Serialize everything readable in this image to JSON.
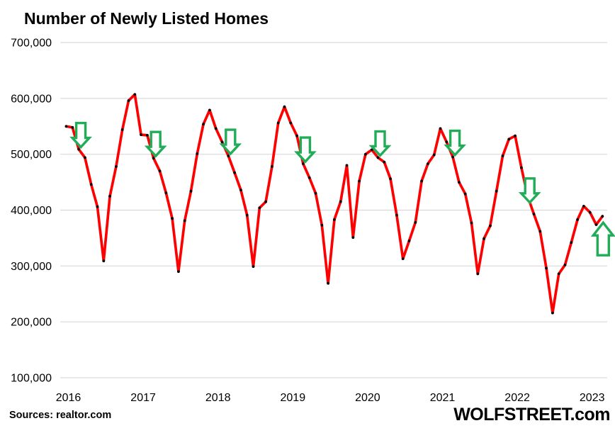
{
  "chart_data": {
    "type": "line",
    "title": "Number of Newly Listed Homes",
    "source_note": "Sources: realtor.com",
    "branding": "WOLFSTREET.com",
    "series_name": "Newly listed homes per month",
    "x": [
      "2016-07",
      "2016-08",
      "2016-09",
      "2016-10",
      "2016-11",
      "2016-12",
      "2017-01",
      "2017-02",
      "2017-03",
      "2017-04",
      "2017-05",
      "2017-06",
      "2017-07",
      "2017-08",
      "2017-09",
      "2017-10",
      "2017-11",
      "2017-12",
      "2018-01",
      "2018-02",
      "2018-03",
      "2018-04",
      "2018-05",
      "2018-06",
      "2018-07",
      "2018-08",
      "2018-09",
      "2018-10",
      "2018-11",
      "2018-12",
      "2019-01",
      "2019-02",
      "2019-03",
      "2019-04",
      "2019-05",
      "2019-06",
      "2019-07",
      "2019-08",
      "2019-09",
      "2019-10",
      "2019-11",
      "2019-12",
      "2020-01",
      "2020-02",
      "2020-03",
      "2020-04",
      "2020-05",
      "2020-06",
      "2020-07",
      "2020-08",
      "2020-09",
      "2020-10",
      "2020-11",
      "2020-12",
      "2021-01",
      "2021-02",
      "2021-03",
      "2021-04",
      "2021-05",
      "2021-06",
      "2021-07",
      "2021-08",
      "2021-09",
      "2021-10",
      "2021-11",
      "2021-12",
      "2022-01",
      "2022-02",
      "2022-03",
      "2022-04",
      "2022-05",
      "2022-06",
      "2022-07",
      "2022-08",
      "2022-09",
      "2022-10",
      "2022-11",
      "2022-12",
      "2023-01",
      "2023-02",
      "2023-03",
      "2023-04",
      "2023-05",
      "2023-06",
      "2023-07",
      "2023-08",
      "2023-09"
    ],
    "values": [
      550000,
      548000,
      509000,
      494000,
      446000,
      406000,
      309000,
      425000,
      478000,
      544000,
      596000,
      607000,
      535000,
      534000,
      493000,
      470000,
      431000,
      385000,
      290000,
      381000,
      434000,
      501000,
      554000,
      579000,
      546000,
      522000,
      497000,
      467000,
      436000,
      391000,
      299000,
      404000,
      415000,
      478000,
      556000,
      585000,
      556000,
      533000,
      483000,
      458000,
      430000,
      373000,
      269000,
      383000,
      415000,
      480000,
      351000,
      452000,
      500000,
      508000,
      494000,
      486000,
      456000,
      391000,
      313000,
      345000,
      378000,
      452000,
      483000,
      499000,
      546000,
      522000,
      495000,
      450000,
      429000,
      377000,
      286000,
      349000,
      372000,
      434000,
      497000,
      527000,
      533000,
      476000,
      425000,
      393000,
      362000,
      296000,
      216000,
      286000,
      302000,
      342000,
      383000,
      407000,
      396000,
      374000,
      389000
    ],
    "x_tick_labels": [
      "2016",
      "2017",
      "2018",
      "2019",
      "2020",
      "2021",
      "2022",
      "2023"
    ],
    "y_ticks": [
      100000,
      200000,
      300000,
      400000,
      500000,
      600000,
      700000
    ],
    "y_tick_labels": [
      "100,000",
      "200,000",
      "300,000",
      "400,000",
      "500,000",
      "600,000",
      "700,000"
    ],
    "ylim": [
      100000,
      700000
    ],
    "grid": "horizontal",
    "legend": "none",
    "line_color": "#FF0000",
    "marker_color": "#000000",
    "gridline_color": "#D9D9D9",
    "annotations": {
      "down_arrow_months": [
        "2016-09",
        "2017-09",
        "2018-09",
        "2019-09",
        "2020-09",
        "2021-09",
        "2022-09"
      ],
      "up_arrow_month": "2023-09",
      "arrow_color": "#21AC58",
      "arrow_fill": "#FFFFFF"
    }
  }
}
